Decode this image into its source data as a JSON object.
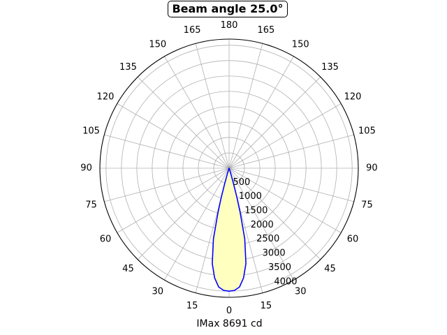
{
  "chart_data": {
    "type": "polar-area",
    "title": "Beam angle 25.0°",
    "xlabel": "IMax 8691 cd",
    "angle_tick_labels": [
      {
        "angle": 0,
        "label": "0"
      },
      {
        "angle": 15,
        "label": "15"
      },
      {
        "angle": 30,
        "label": "30"
      },
      {
        "angle": 45,
        "label": "45"
      },
      {
        "angle": 60,
        "label": "60"
      },
      {
        "angle": 75,
        "label": "75"
      },
      {
        "angle": 90,
        "label": "90"
      },
      {
        "angle": 105,
        "label": "105"
      },
      {
        "angle": 120,
        "label": "120"
      },
      {
        "angle": 135,
        "label": "135"
      },
      {
        "angle": 150,
        "label": "150"
      },
      {
        "angle": 165,
        "label": "165"
      },
      {
        "angle": 180,
        "label": "180"
      },
      {
        "angle": -165,
        "label": "165"
      },
      {
        "angle": -150,
        "label": "150"
      },
      {
        "angle": -135,
        "label": "135"
      },
      {
        "angle": -120,
        "label": "120"
      },
      {
        "angle": -105,
        "label": "105"
      },
      {
        "angle": -90,
        "label": "90"
      },
      {
        "angle": -75,
        "label": "75"
      },
      {
        "angle": -60,
        "label": "60"
      },
      {
        "angle": -45,
        "label": "45"
      },
      {
        "angle": -30,
        "label": "30"
      },
      {
        "angle": -15,
        "label": "15"
      }
    ],
    "radial_ticks": [
      500,
      1000,
      1500,
      2000,
      2500,
      3000,
      3500,
      4000
    ],
    "radial_tick_labels": [
      "500",
      "1000",
      "1500",
      "2000",
      "2500",
      "3000",
      "3500",
      "4000"
    ],
    "rmax": 4200,
    "grid": true,
    "series": [
      {
        "points": [
          {
            "angle": 0,
            "r": 4000
          },
          {
            "angle": 2.5,
            "r": 3980
          },
          {
            "angle": 5,
            "r": 3880
          },
          {
            "angle": 7.5,
            "r": 3600
          },
          {
            "angle": 10,
            "r": 3150
          },
          {
            "angle": 12.5,
            "r": 2350
          },
          {
            "angle": 14,
            "r": 1500
          },
          {
            "angle": 15,
            "r": 1000
          },
          {
            "angle": 16,
            "r": 500
          },
          {
            "angle": 17,
            "r": 200
          },
          {
            "angle": 18,
            "r": 0
          }
        ],
        "line_color": "#0000ff",
        "fill_color": "#ffffc0"
      }
    ]
  }
}
